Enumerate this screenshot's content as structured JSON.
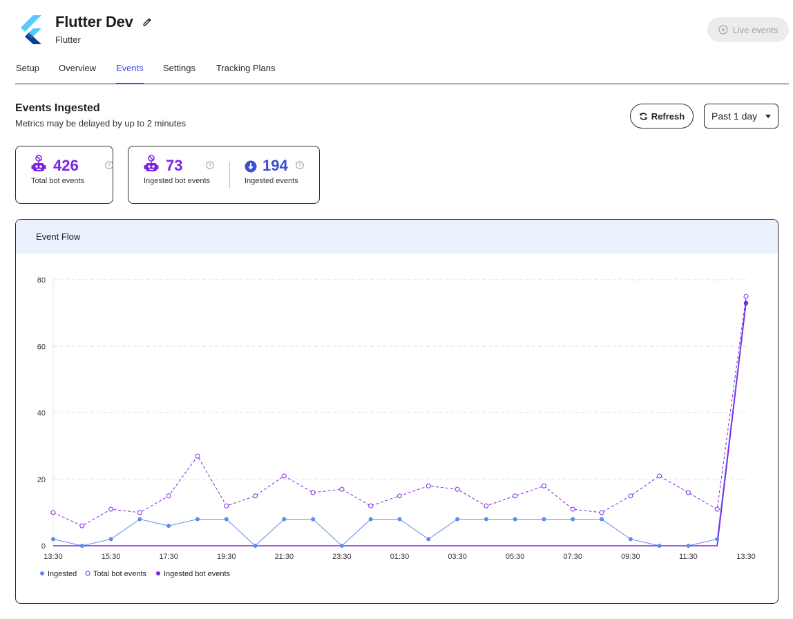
{
  "header": {
    "app_name": "Flutter Dev",
    "platform": "Flutter",
    "live_button_label": "Live events"
  },
  "tabs": [
    {
      "label": "Setup",
      "active": false
    },
    {
      "label": "Overview",
      "active": false
    },
    {
      "label": "Events",
      "active": true
    },
    {
      "label": "Settings",
      "active": false
    },
    {
      "label": "Tracking Plans",
      "active": false
    }
  ],
  "section": {
    "title": "Events Ingested",
    "subtitle": "Metrics may be delayed by up to 2 minutes",
    "refresh_label": "Refresh",
    "range_selected": "Past 1 day"
  },
  "metrics": {
    "total_bot": {
      "value": "426",
      "label": "Total bot events",
      "icon": "robot-icon"
    },
    "ingested_bot": {
      "value": "73",
      "label": "Ingested bot events",
      "icon": "robot-icon"
    },
    "ingested": {
      "value": "194",
      "label": "Ingested events",
      "icon": "download-circle-icon"
    }
  },
  "colors": {
    "purple": "#7b22e8",
    "blue_dark": "#3b4fd6",
    "ingested_line": "#5b8def",
    "accent": "#3b4fd6"
  },
  "chart": {
    "title": "Event Flow"
  },
  "chart_data": {
    "type": "line",
    "title": "Event Flow",
    "xlabel": "",
    "ylabel": "",
    "ylim": [
      0,
      80
    ],
    "yticks": [
      0,
      20,
      40,
      60,
      80
    ],
    "grid": true,
    "legend_position": "bottom-left",
    "x": [
      "13:30",
      "14:30",
      "15:30",
      "16:30",
      "17:30",
      "18:30",
      "19:30",
      "20:30",
      "21:30",
      "22:30",
      "23:30",
      "00:30",
      "01:30",
      "02:30",
      "03:30",
      "04:30",
      "05:30",
      "06:30",
      "07:30",
      "08:30",
      "09:30",
      "10:30",
      "11:30",
      "12:30",
      "13:30"
    ],
    "xtick_labels": [
      "13:30",
      "15:30",
      "17:30",
      "19:30",
      "21:30",
      "23:30",
      "01:30",
      "03:30",
      "05:30",
      "07:30",
      "09:30",
      "11:30",
      "13:30"
    ],
    "series": [
      {
        "name": "Ingested",
        "color": "#5b8def",
        "style": "solid-filled-markers",
        "values": [
          2,
          0,
          2,
          8,
          6,
          8,
          8,
          0,
          8,
          8,
          0,
          8,
          8,
          2,
          8,
          8,
          8,
          8,
          8,
          8,
          2,
          0,
          0,
          2,
          74
        ]
      },
      {
        "name": "Total bot events",
        "color": "#7b22e8",
        "style": "dashed-hollow-markers",
        "values": [
          10,
          6,
          11,
          10,
          15,
          27,
          12,
          15,
          21,
          16,
          17,
          12,
          15,
          18,
          17,
          12,
          15,
          18,
          11,
          10,
          15,
          21,
          16,
          11,
          75
        ]
      },
      {
        "name": "Ingested bot events",
        "color": "#7b22e8",
        "style": "solid-filled-markers",
        "values": [
          0,
          0,
          0,
          0,
          0,
          0,
          0,
          0,
          0,
          0,
          0,
          0,
          0,
          0,
          0,
          0,
          0,
          0,
          0,
          0,
          0,
          0,
          0,
          0,
          73
        ]
      }
    ]
  }
}
